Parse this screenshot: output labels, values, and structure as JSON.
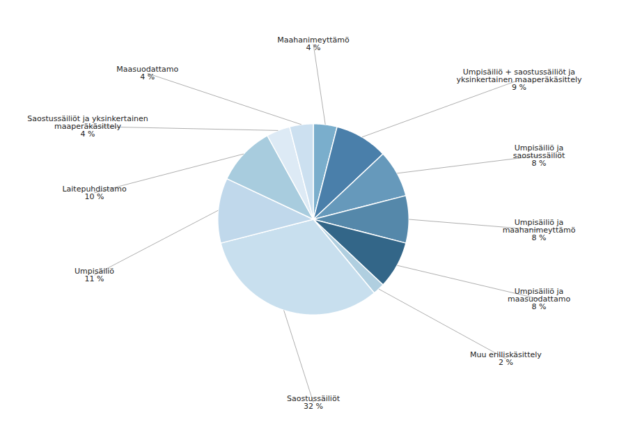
{
  "chart_data": {
    "type": "pie",
    "categories": [
      "Maahanimeyttämö",
      "Umpisäiliö + saostussäiliöt ja\nyksinkertainen maaperäkäsittely",
      "Umpisäiliö ja\nsaostussäiliöt",
      "Umpisäiliö ja\nmaahanimeyttämö",
      "Umpisäiliö ja\nmaasuodattamo",
      "Muu erilliskäsittely",
      "Saostussäiliöt",
      "Umpisäiliö",
      "Laitepuhdistamo",
      "Saostussäiliöt ja yksinkertainen\nmaaperäkäsittely",
      "Maasuodattamo"
    ],
    "values": [
      4,
      9,
      8,
      8,
      8,
      2,
      32,
      11,
      10,
      4,
      4
    ],
    "value_labels": [
      "4 %",
      "9 %",
      "8 %",
      "8 %",
      "8 %",
      "2 %",
      "32 %",
      "11 %",
      "10 %",
      "4 %",
      "4 %"
    ],
    "colors": [
      "#7aaecc",
      "#4a7faa",
      "#6699bb",
      "#5588aa",
      "#336688",
      "#b0cfe0",
      "#c8dfee",
      "#c0d8eb",
      "#a8ccde",
      "#ddeaf5",
      "#cce0f0"
    ]
  }
}
